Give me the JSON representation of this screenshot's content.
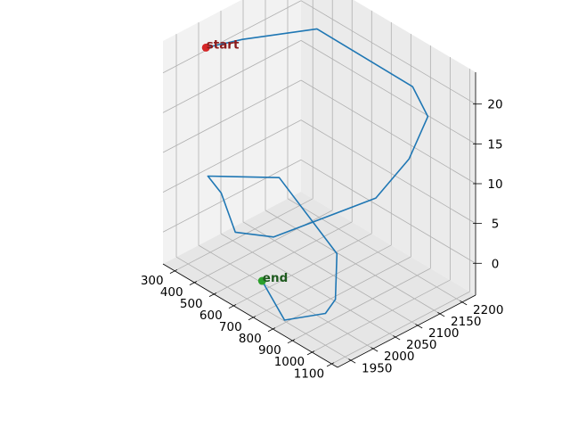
{
  "chart_data": {
    "type": "line3d",
    "title": "",
    "xlabel": "",
    "ylabel": "",
    "zlabel": "",
    "grid": true,
    "xlim": [
      240,
      1130
    ],
    "ylim": [
      1920,
      2230
    ],
    "zlim": [
      -4,
      24
    ],
    "x_ticks": [
      300,
      400,
      500,
      600,
      700,
      800,
      900,
      1000,
      1100
    ],
    "y_ticks": [
      1950,
      2000,
      2050,
      2100,
      2150,
      2200
    ],
    "z_ticks": [
      0,
      5,
      10,
      15,
      20
    ],
    "series": [
      {
        "color": "#1f77b4",
        "points": [
          {
            "x": 300,
            "y": 1990,
            "z": 22
          },
          {
            "x": 350,
            "y": 2050,
            "z": 22
          },
          {
            "x": 480,
            "y": 2160,
            "z": 22
          },
          {
            "x": 900,
            "y": 2190,
            "z": 20
          },
          {
            "x": 1000,
            "y": 2180,
            "z": 18
          },
          {
            "x": 1040,
            "y": 2120,
            "z": 15
          },
          {
            "x": 1030,
            "y": 2050,
            "z": 12
          },
          {
            "x": 600,
            "y": 2010,
            "z": 2
          },
          {
            "x": 450,
            "y": 1990,
            "z": 1
          },
          {
            "x": 310,
            "y": 2020,
            "z": 3
          },
          {
            "x": 310,
            "y": 1990,
            "z": 6
          },
          {
            "x": 560,
            "y": 2040,
            "z": 8
          },
          {
            "x": 900,
            "y": 2020,
            "z": 4
          },
          {
            "x": 960,
            "y": 1990,
            "z": 0
          },
          {
            "x": 1000,
            "y": 1950,
            "z": 0
          },
          {
            "x": 860,
            "y": 1920,
            "z": -2
          },
          {
            "x": 700,
            "y": 1940,
            "z": 0
          }
        ]
      }
    ],
    "annotations": [
      {
        "label": "start",
        "color": "#d62728",
        "text_color": "#8b1a1a",
        "x": 300,
        "y": 1990,
        "z": 22
      },
      {
        "label": "end",
        "color": "#2ca02c",
        "text_color": "#1e5a1e",
        "x": 700,
        "y": 1940,
        "z": 0
      }
    ]
  }
}
